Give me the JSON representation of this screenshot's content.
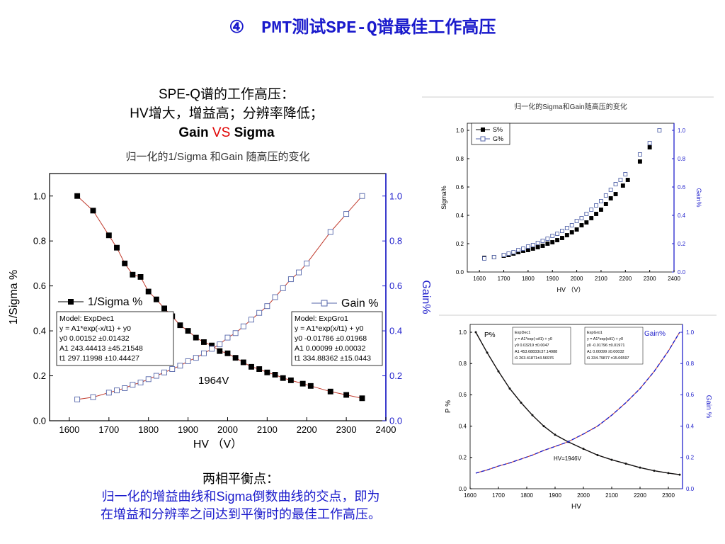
{
  "slide": {
    "title": "④　PMT测试SPE-Q谱最佳工作高压"
  },
  "intro": {
    "line1": "SPE-Q谱的工作高压：",
    "line2": "HV增大，增益高；分辨率降低；",
    "gain_word": "Gain",
    "vs_word": "VS",
    "sigma_word": "Sigma"
  },
  "conclusion": {
    "line1": "两相平衡点：",
    "line2": "归一化的增益曲线和Sigma倒数曲线的交点，即为",
    "line3": "在增益和分辨率之间达到平衡时的最佳工作高压。"
  },
  "colors": {
    "title_blue": "#1a1acc",
    "vs_red": "#e00000",
    "fit_red": "#c0392b",
    "right_axis_blue": "#2222cc"
  },
  "chart_data": [
    {
      "id": "main",
      "type": "scatter",
      "title": "归一化的1/Sigma 和Gain 随高压的变化",
      "xlabel": "HV （V）",
      "ylabel_left": "1/Sigma %",
      "ylabel_right": "Gain%",
      "xlim": [
        1550,
        2400
      ],
      "ylim_left": [
        0,
        1.1
      ],
      "ylim_right": [
        0,
        1.1
      ],
      "xticks": [
        1600,
        1700,
        1800,
        1900,
        2000,
        2100,
        2200,
        2300,
        2400
      ],
      "yticks": [
        0.0,
        0.2,
        0.4,
        0.6,
        0.8,
        1.0
      ],
      "ytick_labels": [
        "0.0",
        "0.2",
        "0.4",
        "0.6",
        "0.8",
        "1.0"
      ],
      "grid": false,
      "annotation": "1964V",
      "series": [
        {
          "name": "1/Sigma %",
          "axis": "left",
          "marker": "filled-square",
          "x": [
            1620,
            1660,
            1700,
            1720,
            1740,
            1760,
            1780,
            1800,
            1820,
            1840,
            1860,
            1880,
            1900,
            1920,
            1940,
            1960,
            1980,
            2000,
            2020,
            2040,
            2060,
            2080,
            2100,
            2120,
            2140,
            2160,
            2190,
            2210,
            2260,
            2300,
            2340
          ],
          "y": [
            1.0,
            0.935,
            0.825,
            0.77,
            0.7,
            0.65,
            0.64,
            0.575,
            0.54,
            0.5,
            0.465,
            0.425,
            0.4,
            0.37,
            0.35,
            0.335,
            0.31,
            0.3,
            0.28,
            0.26,
            0.24,
            0.23,
            0.215,
            0.205,
            0.19,
            0.18,
            0.165,
            0.155,
            0.13,
            0.115,
            0.1
          ]
        },
        {
          "name": "Gain %",
          "axis": "right",
          "marker": "open-square",
          "x": [
            1620,
            1660,
            1700,
            1720,
            1740,
            1760,
            1780,
            1800,
            1820,
            1840,
            1860,
            1880,
            1900,
            1920,
            1940,
            1960,
            1980,
            2000,
            2020,
            2040,
            2060,
            2080,
            2100,
            2120,
            2140,
            2160,
            2180,
            2200,
            2260,
            2300,
            2340
          ],
          "y": [
            0.095,
            0.105,
            0.125,
            0.135,
            0.145,
            0.16,
            0.17,
            0.185,
            0.2,
            0.215,
            0.23,
            0.245,
            0.265,
            0.28,
            0.3,
            0.32,
            0.34,
            0.37,
            0.39,
            0.42,
            0.45,
            0.48,
            0.51,
            0.55,
            0.59,
            0.63,
            0.66,
            0.7,
            0.84,
            0.92,
            1.0
          ]
        }
      ],
      "fit_boxes": [
        {
          "side": "left",
          "lines": [
            "Model: ExpDec1",
            "y = A1*exp(-x/t1) + y0",
            "y0  0.00152          ±0.01432",
            "A1  243.44413 ±45.21548",
            "t1  297.11998 ±10.44427"
          ]
        },
        {
          "side": "right",
          "lines": [
            "Model: ExpGro1",
            "y = A1*exp(x/t1) + y0",
            "y0  -0.01786 ±0.01968",
            "A1  0.00099 ±0.00032",
            "t1  334.88362 ±15.0443"
          ]
        }
      ]
    },
    {
      "id": "top-right",
      "type": "scatter",
      "title": "归一化的Sigma和Gain随高压的变化",
      "xlabel": "HV （V）",
      "ylabel_left": "Sigma%",
      "ylabel_right": "Gain%",
      "xlim": [
        1550,
        2400
      ],
      "ylim_left": [
        0,
        1.05
      ],
      "ylim_right": [
        0,
        1.05
      ],
      "xticks": [
        1600,
        1700,
        1800,
        1900,
        2000,
        2100,
        2200,
        2300,
        2400
      ],
      "yticks": [
        0.0,
        0.2,
        0.4,
        0.6,
        0.8,
        1.0
      ],
      "ytick_labels": [
        "0.0",
        "0.2",
        "0.4",
        "0.6",
        "0.8",
        "1.0"
      ],
      "grid": false,
      "legend": "top-left",
      "series": [
        {
          "name": "S%",
          "axis": "left",
          "marker": "filled-square",
          "x": [
            1620,
            1660,
            1700,
            1720,
            1740,
            1760,
            1780,
            1800,
            1820,
            1840,
            1860,
            1880,
            1900,
            1920,
            1940,
            1960,
            1980,
            2000,
            2020,
            2040,
            2060,
            2080,
            2100,
            2120,
            2140,
            2160,
            2190,
            2210,
            2260,
            2300
          ],
          "y": [
            0.1,
            0.105,
            0.115,
            0.12,
            0.13,
            0.14,
            0.15,
            0.155,
            0.165,
            0.175,
            0.185,
            0.2,
            0.21,
            0.225,
            0.24,
            0.26,
            0.28,
            0.3,
            0.33,
            0.35,
            0.38,
            0.41,
            0.44,
            0.48,
            0.52,
            0.55,
            0.61,
            0.65,
            0.78,
            0.88
          ]
        },
        {
          "name": "G%",
          "axis": "right",
          "marker": "open-square",
          "x": [
            1620,
            1660,
            1700,
            1720,
            1740,
            1760,
            1780,
            1800,
            1820,
            1840,
            1860,
            1880,
            1900,
            1920,
            1940,
            1960,
            1980,
            2000,
            2020,
            2040,
            2060,
            2080,
            2100,
            2120,
            2140,
            2160,
            2180,
            2200,
            2260,
            2300,
            2340
          ],
          "y": [
            0.095,
            0.105,
            0.12,
            0.13,
            0.14,
            0.155,
            0.165,
            0.18,
            0.19,
            0.205,
            0.22,
            0.235,
            0.255,
            0.27,
            0.29,
            0.31,
            0.33,
            0.36,
            0.38,
            0.41,
            0.44,
            0.47,
            0.5,
            0.54,
            0.58,
            0.62,
            0.65,
            0.69,
            0.83,
            0.91,
            1.0
          ]
        }
      ]
    },
    {
      "id": "bottom-right",
      "type": "line",
      "xlabel": "HV",
      "ylabel_left": "P %",
      "ylabel_right": "Gain %",
      "xlim": [
        1600,
        2350
      ],
      "ylim_left": [
        0,
        1.05
      ],
      "ylim_right": [
        0,
        1.05
      ],
      "xticks": [
        1600,
        1700,
        1800,
        1900,
        2000,
        2100,
        2200,
        2300
      ],
      "yticks": [
        0.0,
        0.2,
        0.4,
        0.6,
        0.8,
        1.0
      ],
      "ytick_labels": [
        "0.0",
        "0.2",
        "0.4",
        "0.6",
        "0.8",
        "1.0"
      ],
      "grid": false,
      "annotation": "HV=1946V",
      "series_labels": [
        "P%",
        "Gain%"
      ],
      "series": [
        {
          "name": "P%",
          "axis": "left",
          "x": [
            1620,
            1660,
            1700,
            1740,
            1780,
            1820,
            1860,
            1900,
            1946,
            2000,
            2050,
            2100,
            2150,
            2200,
            2250,
            2300,
            2340
          ],
          "y": [
            1.0,
            0.87,
            0.75,
            0.64,
            0.55,
            0.47,
            0.4,
            0.345,
            0.3,
            0.255,
            0.215,
            0.185,
            0.16,
            0.135,
            0.115,
            0.1,
            0.09
          ]
        },
        {
          "name": "Gain%",
          "axis": "right",
          "x": [
            1620,
            1660,
            1700,
            1740,
            1780,
            1820,
            1860,
            1900,
            1946,
            2000,
            2050,
            2100,
            2150,
            2200,
            2250,
            2300,
            2340
          ],
          "y": [
            0.1,
            0.12,
            0.145,
            0.165,
            0.19,
            0.215,
            0.245,
            0.27,
            0.3,
            0.35,
            0.4,
            0.47,
            0.55,
            0.64,
            0.75,
            0.88,
            1.0
          ]
        }
      ],
      "fit_boxes": [
        {
          "side": "left",
          "lines": [
            "ExpDec1",
            "y = A1*exp(-x/t1) + y0",
            "y0  0.03219 ±0.0047",
            "A1  453.68833±37.14988",
            "t1  263.41871±3.56976"
          ]
        },
        {
          "side": "right",
          "lines": [
            "ExpGro1",
            "y = A1*exp(x/t1) + y0",
            "y0  -0.01796 ±0.01971",
            "A1  0.00099 ±0.00032",
            "t1  334.79877 ±15.06597"
          ]
        }
      ]
    }
  ]
}
